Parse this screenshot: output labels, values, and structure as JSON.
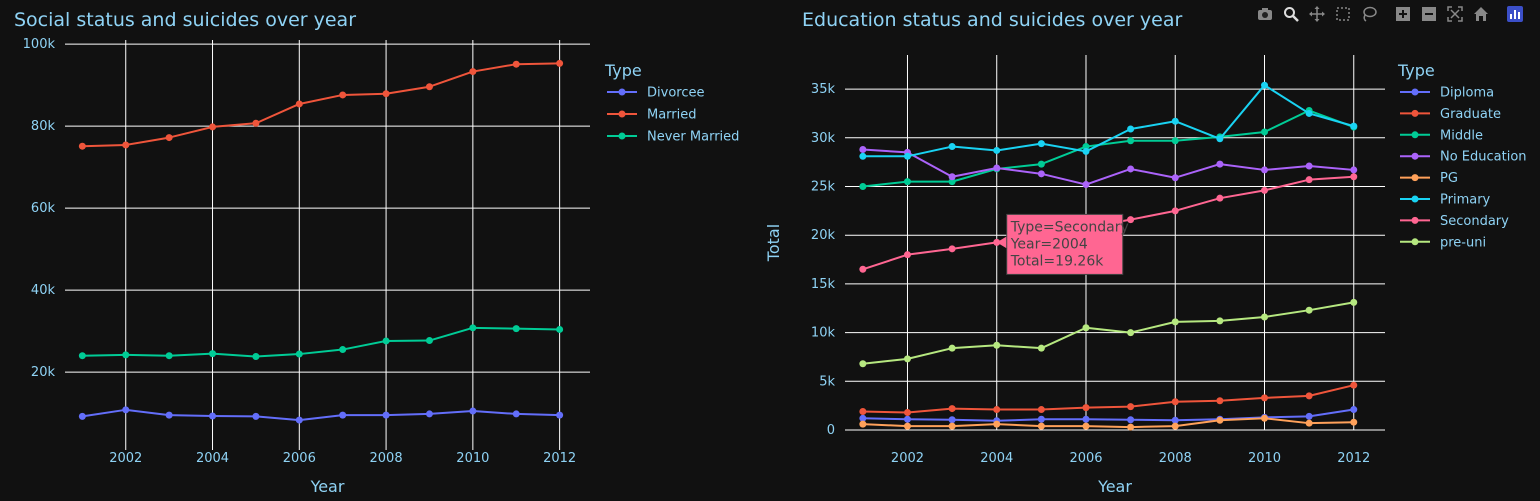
{
  "colors": {
    "Divorcee": "#636efa",
    "Married": "#ef553b",
    "Never Married": "#00cc96",
    "Diploma": "#636efa",
    "Graduate": "#ef553b",
    "Middle": "#00cc96",
    "No Education": "#ab63fa",
    "PG": "#ffa15a",
    "Primary": "#19d3f3",
    "Secondary": "#ff6692",
    "pre-uni": "#b6e880"
  },
  "modebar": [
    {
      "name": "camera-icon"
    },
    {
      "name": "zoom-icon"
    },
    {
      "name": "pan-icon"
    },
    {
      "name": "box-select-icon"
    },
    {
      "name": "lasso-select-icon"
    },
    {
      "name": "zoom-in-icon"
    },
    {
      "name": "zoom-out-icon"
    },
    {
      "name": "autoscale-icon"
    },
    {
      "name": "reset-axes-icon"
    },
    {
      "name": "plotly-logo-icon"
    }
  ],
  "chart_data": [
    {
      "type": "line",
      "title": "Social status and suicides over year",
      "xlabel": "Year",
      "ylabel": "",
      "legend_title": "Type",
      "legend_position": "right",
      "grid": true,
      "xlim": [
        2000.6,
        2012.7
      ],
      "ylim": [
        1000,
        101000
      ],
      "x_ticks": [
        2002,
        2004,
        2006,
        2008,
        2010,
        2012
      ],
      "y_ticks": [
        {
          "value": 20000,
          "label": "20k"
        },
        {
          "value": 40000,
          "label": "40k"
        },
        {
          "value": 60000,
          "label": "60k"
        },
        {
          "value": 80000,
          "label": "80k"
        },
        {
          "value": 100000,
          "label": "100k"
        }
      ],
      "x": [
        2001,
        2002,
        2003,
        2004,
        2005,
        2006,
        2007,
        2008,
        2009,
        2010,
        2011,
        2012
      ],
      "series": [
        {
          "name": "Divorcee",
          "values": [
            9200,
            10800,
            9500,
            9300,
            9200,
            8300,
            9500,
            9500,
            9800,
            10500,
            9800,
            9500
          ]
        },
        {
          "name": "Married",
          "values": [
            75100,
            75400,
            77200,
            79800,
            80700,
            85400,
            87600,
            87900,
            89600,
            93300,
            95100,
            95300
          ]
        },
        {
          "name": "Never Married",
          "values": [
            24000,
            24200,
            24000,
            24500,
            23800,
            24400,
            25500,
            27600,
            27700,
            30800,
            30600,
            30400
          ]
        }
      ]
    },
    {
      "type": "line",
      "title": "Education status and suicides over year",
      "xlabel": "Year",
      "ylabel": "Total",
      "legend_title": "Type",
      "legend_position": "right",
      "grid": true,
      "xlim": [
        2000.6,
        2012.7
      ],
      "ylim": [
        0,
        38500
      ],
      "x_ticks": [
        2002,
        2004,
        2006,
        2008,
        2010,
        2012
      ],
      "y_ticks": [
        {
          "value": 0,
          "label": "0"
        },
        {
          "value": 5000,
          "label": "5k"
        },
        {
          "value": 10000,
          "label": "10k"
        },
        {
          "value": 15000,
          "label": "15k"
        },
        {
          "value": 20000,
          "label": "20k"
        },
        {
          "value": 25000,
          "label": "25k"
        },
        {
          "value": 30000,
          "label": "30k"
        },
        {
          "value": 35000,
          "label": "35k"
        }
      ],
      "x": [
        2001,
        2002,
        2003,
        2004,
        2005,
        2006,
        2007,
        2008,
        2009,
        2010,
        2011,
        2012
      ],
      "series": [
        {
          "name": "Diploma",
          "values": [
            1200,
            1100,
            1050,
            950,
            1100,
            1100,
            1050,
            1000,
            1100,
            1300,
            1400,
            2100
          ]
        },
        {
          "name": "Graduate",
          "values": [
            1900,
            1800,
            2200,
            2100,
            2100,
            2300,
            2400,
            2900,
            3000,
            3300,
            3500,
            4600
          ]
        },
        {
          "name": "Middle",
          "values": [
            25000,
            25500,
            25500,
            26800,
            27300,
            29100,
            29700,
            29700,
            30100,
            30600,
            32800,
            31100
          ]
        },
        {
          "name": "No Education",
          "values": [
            28800,
            28500,
            26000,
            26900,
            26300,
            25200,
            26800,
            25900,
            27300,
            26700,
            27100,
            26700
          ]
        },
        {
          "name": "PG",
          "values": [
            600,
            400,
            400,
            600,
            400,
            400,
            300,
            400,
            1000,
            1200,
            700,
            800
          ]
        },
        {
          "name": "Primary",
          "values": [
            28100,
            28100,
            29100,
            28700,
            29400,
            28600,
            30900,
            31700,
            29900,
            35400,
            32500,
            31200
          ]
        },
        {
          "name": "Secondary",
          "values": [
            16500,
            18000,
            18600,
            19260,
            20000,
            20800,
            21600,
            22500,
            23800,
            24600,
            25700,
            26000
          ]
        },
        {
          "name": "pre-uni",
          "values": [
            6800,
            7300,
            8400,
            8700,
            8400,
            10500,
            10000,
            11100,
            11200,
            11600,
            12300,
            13100
          ]
        }
      ],
      "tooltip": {
        "series": "Secondary",
        "lines": [
          "Type=Secondary",
          "Year=2004",
          "Total=19.26k"
        ]
      }
    }
  ]
}
